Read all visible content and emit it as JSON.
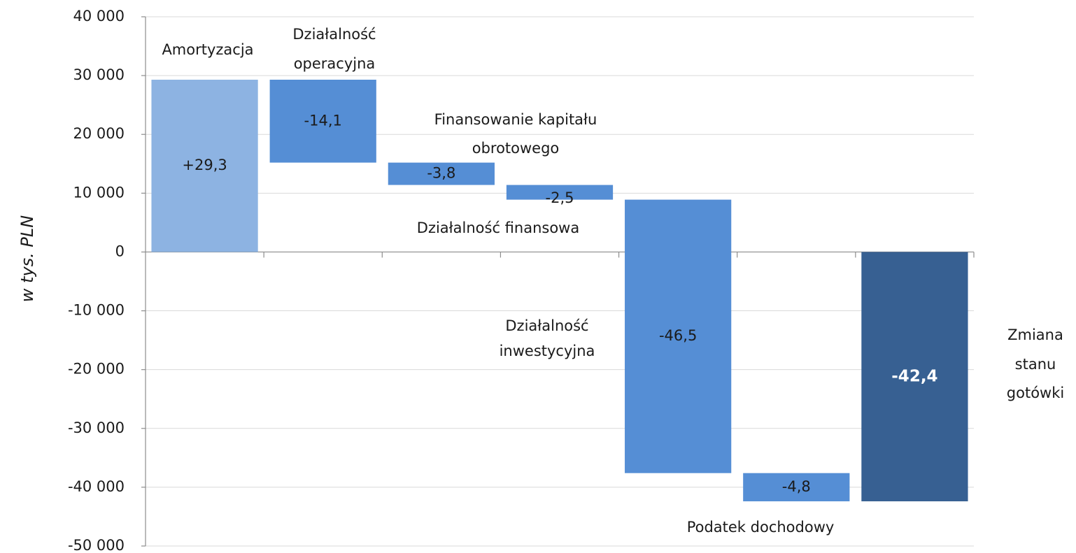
{
  "chart_data": {
    "type": "waterfall",
    "y_label": "w tys. PLN",
    "categories": [
      [
        "Amortyzacja"
      ],
      [
        "Działalność",
        "operacyjna"
      ],
      [
        "Finansowanie kapitału",
        "obrotowego"
      ],
      [
        "Działalność finansowa"
      ],
      [
        "Działalność",
        "inwestycyjna"
      ],
      [
        "Podatek dochodowy"
      ],
      [
        "Zmiana",
        "stanu",
        "gotówki"
      ]
    ],
    "values": [
      29300,
      -14100,
      -3800,
      -2500,
      -46500,
      -4800,
      -42400
    ],
    "value_labels": [
      "+29,3",
      "-14,1",
      "-3,8",
      "-2,5",
      "-46,5",
      "-4,8",
      "-42,4"
    ],
    "colors": [
      "#8db3e2",
      "#558ed5",
      "#558ed5",
      "#558ed5",
      "#558ed5",
      "#558ed5",
      "#376092"
    ],
    "ylim": [
      -50000,
      40000
    ],
    "yticks": [
      {
        "value": -50000,
        "label": "-50 000"
      },
      {
        "value": -40000,
        "label": "-40 000"
      },
      {
        "value": -30000,
        "label": "-30 000"
      },
      {
        "value": -20000,
        "label": "-20 000"
      },
      {
        "value": -10000,
        "label": "-10 000"
      },
      0,
      {
        "value": 10000,
        "label": "10 000"
      },
      {
        "value": 20000,
        "label": "20 000"
      },
      {
        "value": 30000,
        "label": "30 000"
      },
      {
        "value": 40000,
        "label": "40 000"
      }
    ],
    "grid": true
  }
}
